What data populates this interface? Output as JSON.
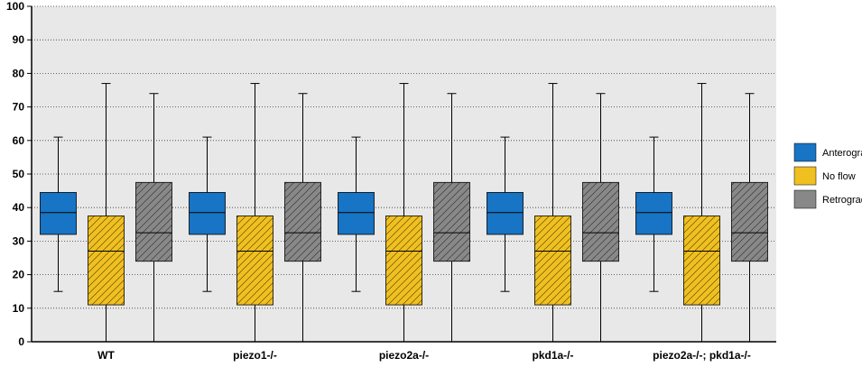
{
  "chart_data": {
    "type": "boxplot",
    "ylim": [
      0,
      100
    ],
    "yticks": [
      0,
      10,
      20,
      30,
      40,
      50,
      60,
      70,
      80,
      90,
      100
    ],
    "grid": true,
    "legend_position": "right",
    "categories": [
      "WT",
      "piezo1-/-",
      "piezo2a-/-",
      "pkd1a-/-",
      "piezo2a-/-; pkd1a-/-"
    ],
    "series": [
      {
        "name": "Anterograde",
        "color": "#1874c4",
        "hatched": false,
        "boxes": [
          {
            "min": 15,
            "q1": 32,
            "median": 38.5,
            "q3": 44.5,
            "max": 61
          },
          {
            "min": 15,
            "q1": 32,
            "median": 38.5,
            "q3": 44.5,
            "max": 61
          },
          {
            "min": 15,
            "q1": 32,
            "median": 38.5,
            "q3": 44.5,
            "max": 61
          },
          {
            "min": 15,
            "q1": 32,
            "median": 38.5,
            "q3": 44.5,
            "max": 61
          },
          {
            "min": 15,
            "q1": 32,
            "median": 38.5,
            "q3": 44.5,
            "max": 61
          }
        ]
      },
      {
        "name": "No flow",
        "color": "#f0c020",
        "hatched": true,
        "boxes": [
          {
            "min": 0,
            "q1": 11,
            "median": 27,
            "q3": 37.5,
            "max": 77
          },
          {
            "min": 0,
            "q1": 11,
            "median": 27,
            "q3": 37.5,
            "max": 77
          },
          {
            "min": 0,
            "q1": 11,
            "median": 27,
            "q3": 37.5,
            "max": 77
          },
          {
            "min": 0,
            "q1": 11,
            "median": 27,
            "q3": 37.5,
            "max": 77
          },
          {
            "min": 0,
            "q1": 11,
            "median": 27,
            "q3": 37.5,
            "max": 77
          }
        ]
      },
      {
        "name": "Retrograde",
        "color": "#888888",
        "hatched": true,
        "boxes": [
          {
            "min": 0,
            "q1": 24,
            "median": 32.5,
            "q3": 47.5,
            "max": 74
          },
          {
            "min": 0,
            "q1": 24,
            "median": 32.5,
            "q3": 47.5,
            "max": 74
          },
          {
            "min": 0,
            "q1": 24,
            "median": 32.5,
            "q3": 47.5,
            "max": 74
          },
          {
            "min": 0,
            "q1": 24,
            "median": 32.5,
            "q3": 47.5,
            "max": 74
          },
          {
            "min": 0,
            "q1": 24,
            "median": 32.5,
            "q3": 47.5,
            "max": 74
          }
        ]
      }
    ]
  }
}
